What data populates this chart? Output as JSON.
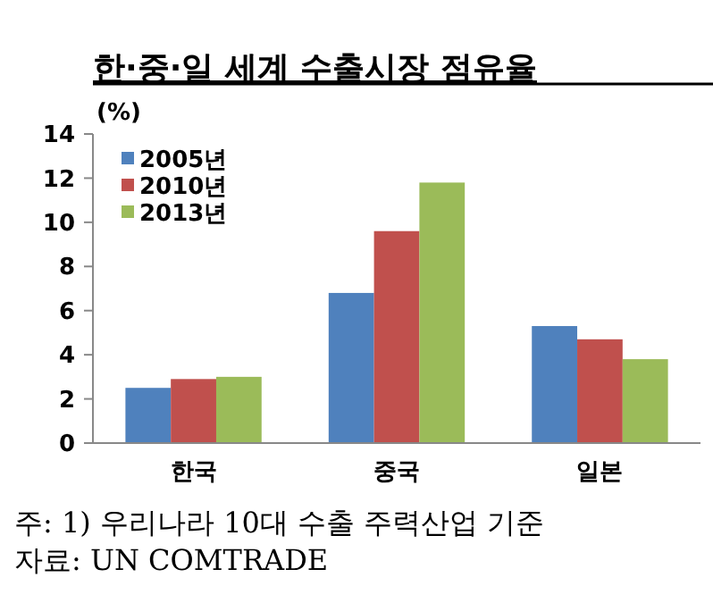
{
  "chart_data": {
    "type": "bar",
    "title": "한·중·일 세계 수출시장 점유율",
    "ylabel": "(%)",
    "categories": [
      "한국",
      "중국",
      "일본"
    ],
    "series": [
      {
        "name": "2005년",
        "color": "#4f81bd",
        "values": [
          2.5,
          6.8,
          5.3
        ]
      },
      {
        "name": "2010년",
        "color": "#c0504d",
        "values": [
          2.9,
          9.6,
          4.7
        ]
      },
      {
        "name": "2013년",
        "color": "#9bbb59",
        "values": [
          3.0,
          11.8,
          3.8
        ]
      }
    ],
    "ylim": [
      0,
      14
    ],
    "yticks": [
      0,
      2,
      4,
      6,
      8,
      10,
      12,
      14
    ],
    "legend": "top left",
    "annotations": [
      "주: 1) 우리나라 10대 수출 주력산업 기준",
      "자료: UN COMTRADE"
    ]
  }
}
